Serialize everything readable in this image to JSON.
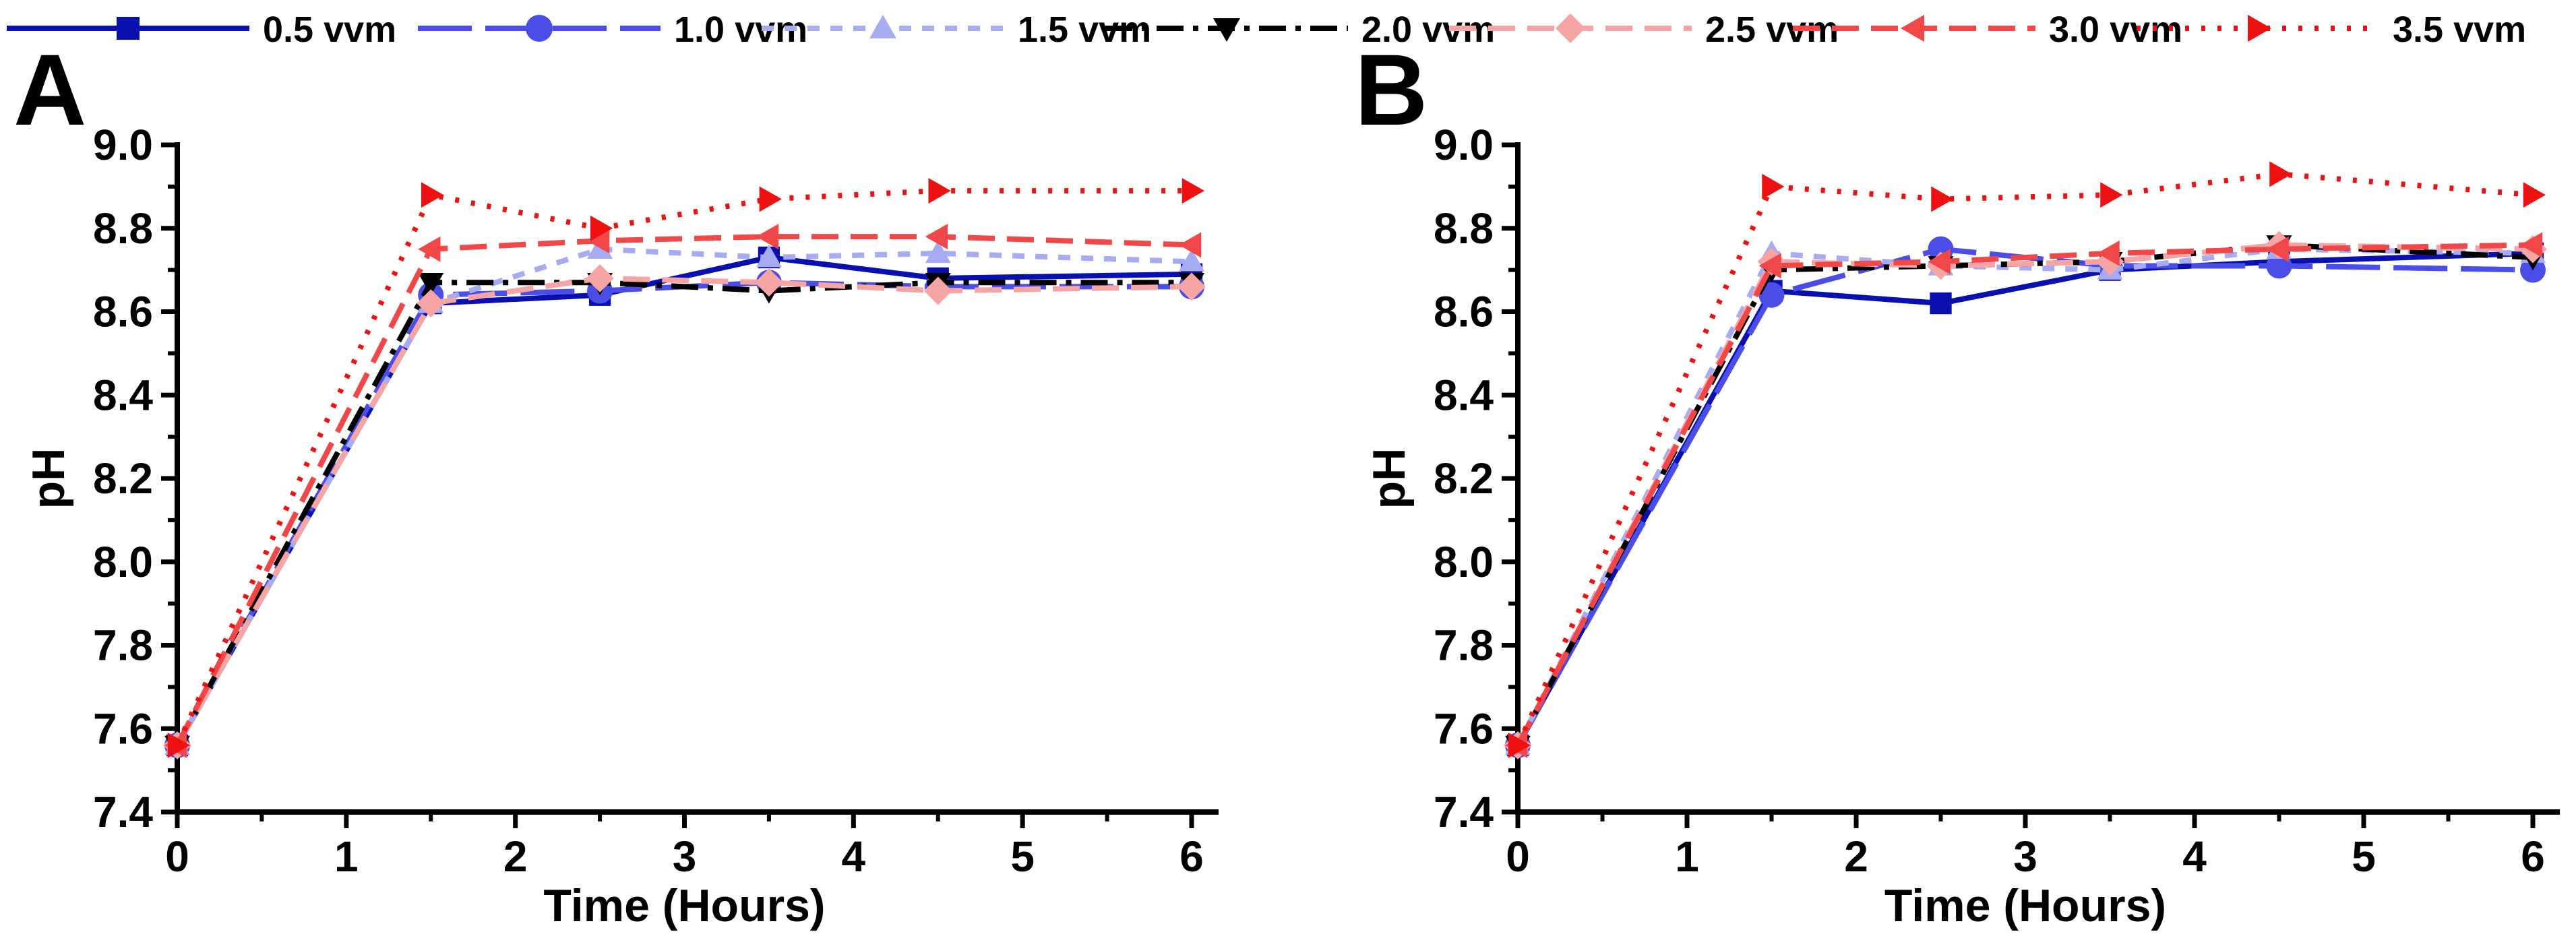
{
  "colors": {
    "0.5 vvm": "#0a10b0",
    "1.0 vvm": "#4a4ee6",
    "1.5 vvm": "#a7abf1",
    "2.0 vvm": "#000000",
    "2.5 vvm": "#f6a4a4",
    "3.0 vvm": "#f04848",
    "3.5 vvm": "#ee1111"
  },
  "legend": [
    {
      "label": "0.5 vvm",
      "marker": "square",
      "dash": "solid"
    },
    {
      "label": "1.0 vvm",
      "marker": "circle",
      "dash": "longdash"
    },
    {
      "label": "1.5 vvm",
      "marker": "triangle-up",
      "dash": "shortdash"
    },
    {
      "label": "2.0 vvm",
      "marker": "triangle-down",
      "dash": "dashdot"
    },
    {
      "label": "2.5 vvm",
      "marker": "diamond",
      "dash": "dash"
    },
    {
      "label": "3.0 vvm",
      "marker": "triangle-left",
      "dash": "dash"
    },
    {
      "label": "3.5 vvm",
      "marker": "triangle-right",
      "dash": "dot"
    }
  ],
  "chart_data": [
    {
      "panel_label": "A",
      "type": "line",
      "xlabel": "Time (Hours)",
      "ylabel": "pH",
      "xlim": [
        0,
        6
      ],
      "ylim": [
        7.4,
        9.0
      ],
      "xticks": [
        0,
        1,
        2,
        3,
        4,
        5,
        6
      ],
      "yticks": [
        7.4,
        7.6,
        7.8,
        8.0,
        8.2,
        8.4,
        8.6,
        8.8,
        9.0
      ],
      "x": [
        0,
        1.5,
        2.5,
        3.5,
        4.5,
        6
      ],
      "series": [
        {
          "name": "0.5 vvm",
          "values": [
            7.56,
            8.62,
            8.64,
            8.73,
            8.68,
            8.69
          ]
        },
        {
          "name": "1.0 vvm",
          "values": [
            7.56,
            8.64,
            8.65,
            8.67,
            8.66,
            8.66
          ]
        },
        {
          "name": "1.5 vvm",
          "values": [
            7.56,
            8.62,
            8.75,
            8.73,
            8.74,
            8.72
          ]
        },
        {
          "name": "2.0 vvm",
          "values": [
            7.56,
            8.67,
            8.67,
            8.65,
            8.67,
            8.67
          ]
        },
        {
          "name": "2.5 vvm",
          "values": [
            7.56,
            8.62,
            8.68,
            8.67,
            8.65,
            8.66
          ]
        },
        {
          "name": "3.0 vvm",
          "values": [
            7.56,
            8.75,
            8.77,
            8.78,
            8.78,
            8.76
          ]
        },
        {
          "name": "3.5 vvm",
          "values": [
            7.56,
            8.88,
            8.8,
            8.87,
            8.89,
            8.89
          ]
        }
      ]
    },
    {
      "panel_label": "B",
      "type": "line",
      "xlabel": "Time (Hours)",
      "ylabel": "pH",
      "xlim": [
        0,
        6
      ],
      "ylim": [
        7.4,
        9.0
      ],
      "xticks": [
        0,
        1,
        2,
        3,
        4,
        5,
        6
      ],
      "yticks": [
        7.4,
        7.6,
        7.8,
        8.0,
        8.2,
        8.4,
        8.6,
        8.8,
        9.0
      ],
      "x": [
        0,
        1.5,
        2.5,
        3.5,
        4.5,
        6
      ],
      "series": [
        {
          "name": "0.5 vvm",
          "values": [
            7.56,
            8.65,
            8.62,
            8.7,
            8.72,
            8.74
          ]
        },
        {
          "name": "1.0 vvm",
          "values": [
            7.56,
            8.64,
            8.75,
            8.71,
            8.71,
            8.7
          ]
        },
        {
          "name": "1.5 vvm",
          "values": [
            7.56,
            8.74,
            8.71,
            8.7,
            8.75,
            8.74
          ]
        },
        {
          "name": "2.0 vvm",
          "values": [
            7.56,
            8.7,
            8.71,
            8.72,
            8.76,
            8.73
          ]
        },
        {
          "name": "2.5 vvm",
          "values": [
            7.56,
            8.72,
            8.71,
            8.72,
            8.76,
            8.75
          ]
        },
        {
          "name": "3.0 vvm",
          "values": [
            7.56,
            8.71,
            8.72,
            8.74,
            8.75,
            8.76
          ]
        },
        {
          "name": "3.5 vvm",
          "values": [
            7.56,
            8.9,
            8.87,
            8.88,
            8.93,
            8.88
          ]
        }
      ]
    }
  ]
}
